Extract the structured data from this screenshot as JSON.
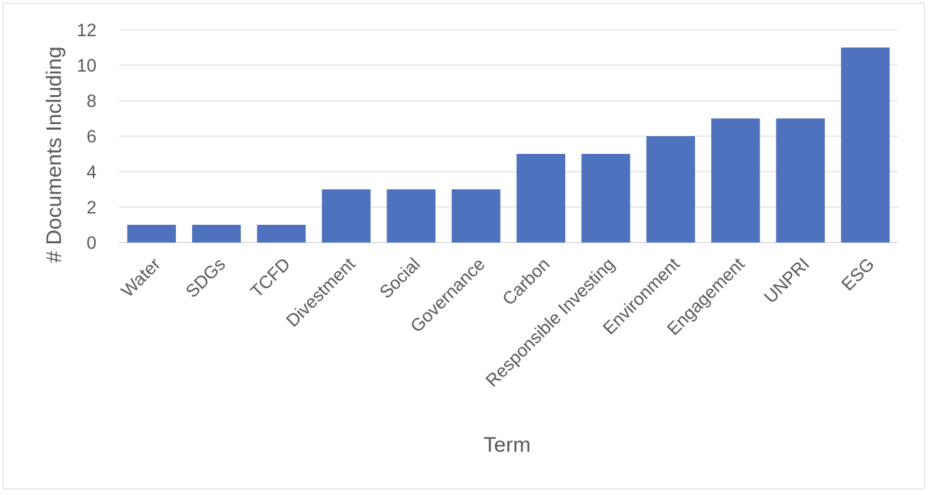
{
  "chart_data": {
    "type": "bar",
    "title": "",
    "xlabel": "Term",
    "ylabel": "# Documents Including",
    "categories": [
      "Water",
      "SDGs",
      "TCFD",
      "Divestment",
      "Social",
      "Governance",
      "Carbon",
      "Responsible Investing",
      "Environment",
      "Engagement",
      "UNPRI",
      "ESG"
    ],
    "values": [
      1,
      1,
      1,
      3,
      3,
      3,
      5,
      5,
      6,
      7,
      7,
      11
    ],
    "ylim": [
      0,
      12
    ],
    "yticks": [
      0,
      2,
      4,
      6,
      8,
      10,
      12
    ],
    "grid": true,
    "legend": "none",
    "bar_color": "#4E72BE",
    "grid_color": "#d9d9d9",
    "text_color": "#595959"
  }
}
